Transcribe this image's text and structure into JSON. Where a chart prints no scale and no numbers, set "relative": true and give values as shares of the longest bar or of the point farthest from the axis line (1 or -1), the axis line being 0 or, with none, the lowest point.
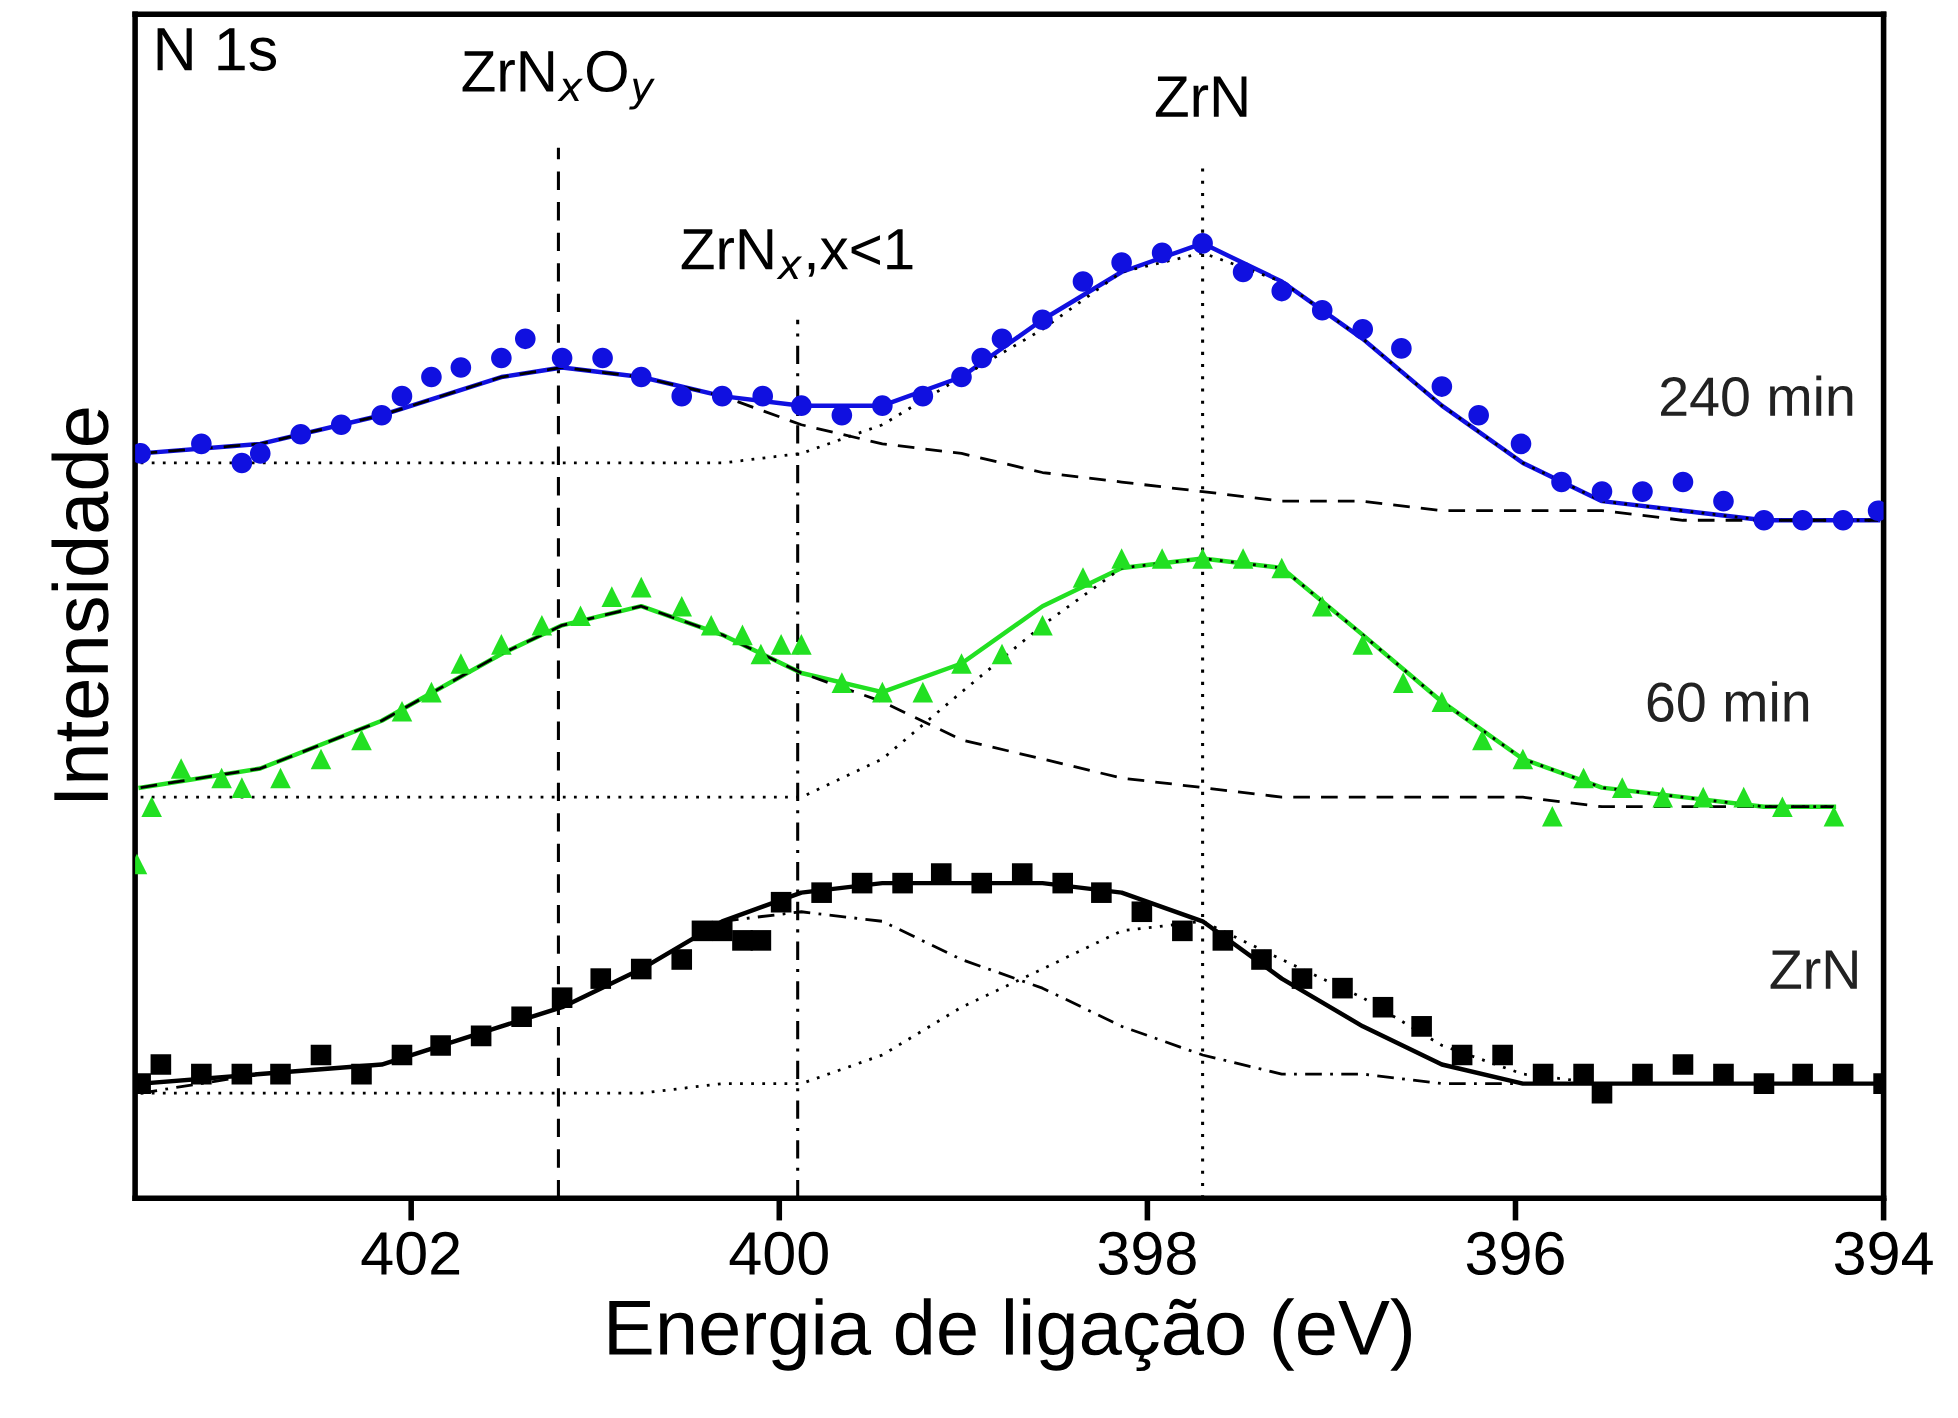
{
  "chart_data": {
    "type": "scatter",
    "relative": true,
    "xlabel": "Energia de ligação (eV)",
    "ylabel": "Intensidade",
    "xlim": [
      403.5,
      394
    ],
    "xticks": [
      402,
      400,
      398,
      396,
      394
    ],
    "tick_labels": "x",
    "grid": false,
    "legend": false,
    "annotations": [
      "N 1s"
    ],
    "ref_lines": [
      {
        "axis": "x",
        "value": 401.2,
        "label": "ZrN$_{x}$O$_{y}$",
        "line_style": "dashed",
        "color": "#000000"
      },
      {
        "axis": "x",
        "value": 399.9,
        "label": "ZrN$_{x}$,x<1",
        "line_style": "dashdot",
        "color": "#000000"
      },
      {
        "axis": "x",
        "value": 397.7,
        "label": "ZrN",
        "line_style": "dotted",
        "color": "#000000"
      }
    ],
    "series": [
      {
        "name": "240 min",
        "marker": "circle",
        "color": "#1010e0",
        "x": [
          403.47,
          403.14,
          402.92,
          402.82,
          402.6,
          402.38,
          402.16,
          402.05,
          401.89,
          401.73,
          401.51,
          401.38,
          401.18,
          400.96,
          400.75,
          400.53,
          400.31,
          400.09,
          399.88,
          399.66,
          399.44,
          399.22,
          399.01,
          398.9,
          398.79,
          398.57,
          398.35,
          398.14,
          397.92,
          397.7,
          397.48,
          397.27,
          397.05,
          396.83,
          396.62,
          396.4,
          396.2,
          395.97,
          395.75,
          395.53,
          395.31,
          395.09,
          394.87,
          394.65,
          394.44,
          394.22,
          394.03
        ],
        "values": [
          0.78,
          0.79,
          0.77,
          0.78,
          0.8,
          0.81,
          0.82,
          0.84,
          0.86,
          0.87,
          0.88,
          0.9,
          0.88,
          0.88,
          0.86,
          0.84,
          0.84,
          0.84,
          0.83,
          0.82,
          0.83,
          0.84,
          0.86,
          0.88,
          0.9,
          0.92,
          0.96,
          0.98,
          0.99,
          1.0,
          0.97,
          0.95,
          0.93,
          0.91,
          0.89,
          0.85,
          0.82,
          0.79,
          0.75,
          0.74,
          0.74,
          0.75,
          0.73,
          0.71,
          0.71,
          0.71,
          0.72
        ]
      },
      {
        "type": "line",
        "line_style": "solid",
        "color": "#1010e0",
        "x": [
          403.47,
          402.82,
          402.16,
          401.51,
          401.18,
          400.75,
          400.31,
          399.88,
          399.44,
          399.01,
          398.57,
          398.14,
          397.7,
          397.27,
          396.83,
          396.4,
          395.96,
          395.53,
          395.09,
          394.65,
          394.03
        ],
        "values": [
          0.78,
          0.79,
          0.82,
          0.86,
          0.87,
          0.86,
          0.84,
          0.83,
          0.83,
          0.86,
          0.92,
          0.97,
          1.0,
          0.96,
          0.9,
          0.83,
          0.77,
          0.73,
          0.72,
          0.71,
          0.71
        ]
      },
      {
        "type": "line",
        "line_style": "dashed",
        "color": "#000000",
        "x": [
          403.47,
          402.82,
          402.16,
          401.51,
          401.18,
          400.75,
          400.31,
          399.88,
          399.44,
          399.01,
          398.57,
          398.14,
          397.7,
          397.27,
          396.83,
          396.4,
          395.96,
          395.53,
          395.09,
          394.65,
          394.03
        ],
        "values": [
          0.78,
          0.79,
          0.82,
          0.86,
          0.87,
          0.86,
          0.84,
          0.81,
          0.79,
          0.78,
          0.76,
          0.75,
          0.74,
          0.73,
          0.73,
          0.72,
          0.72,
          0.72,
          0.71,
          0.71,
          0.71
        ]
      },
      {
        "type": "line",
        "line_style": "dotted",
        "color": "#000000",
        "x": [
          403.47,
          402.82,
          402.16,
          401.51,
          401.18,
          400.75,
          400.31,
          399.88,
          399.44,
          399.01,
          398.57,
          398.14,
          397.7,
          397.27,
          396.83,
          396.4,
          395.96,
          395.53,
          395.09,
          394.65,
          394.03
        ],
        "values": [
          0.77,
          0.77,
          0.77,
          0.77,
          0.77,
          0.77,
          0.77,
          0.78,
          0.81,
          0.86,
          0.91,
          0.97,
          0.99,
          0.96,
          0.9,
          0.83,
          0.77,
          0.73,
          0.72,
          0.71,
          0.71
        ]
      },
      {
        "name": "60 min",
        "marker": "triangle",
        "color": "#22e022",
        "x": [
          403.49,
          403.41,
          403.25,
          403.03,
          402.92,
          402.71,
          402.49,
          402.27,
          402.05,
          401.89,
          401.73,
          401.51,
          401.29,
          401.08,
          400.91,
          400.75,
          400.53,
          400.37,
          400.2,
          400.1,
          399.99,
          399.88,
          399.66,
          399.44,
          399.22,
          399.01,
          398.79,
          398.57,
          398.35,
          398.14,
          397.92,
          397.7,
          397.48,
          397.27,
          397.05,
          396.83,
          396.61,
          396.4,
          396.18,
          395.96,
          395.8,
          395.63,
          395.42,
          395.2,
          394.98,
          394.76,
          394.55,
          394.27
        ],
        "values": [
          0.35,
          0.41,
          0.45,
          0.44,
          0.43,
          0.44,
          0.46,
          0.48,
          0.51,
          0.53,
          0.56,
          0.58,
          0.6,
          0.61,
          0.63,
          0.64,
          0.62,
          0.6,
          0.59,
          0.57,
          0.58,
          0.58,
          0.54,
          0.53,
          0.53,
          0.56,
          0.57,
          0.6,
          0.65,
          0.67,
          0.67,
          0.67,
          0.67,
          0.66,
          0.62,
          0.58,
          0.54,
          0.52,
          0.48,
          0.46,
          0.4,
          0.44,
          0.43,
          0.42,
          0.42,
          0.42,
          0.41,
          0.4
        ]
      },
      {
        "type": "line",
        "line_style": "solid",
        "color": "#22e022",
        "x": [
          403.47,
          402.82,
          402.16,
          401.51,
          401.18,
          400.75,
          400.31,
          399.88,
          399.44,
          399.01,
          398.57,
          398.14,
          397.7,
          397.27,
          396.83,
          396.4,
          395.96,
          395.53,
          395.09,
          394.65,
          394.27
        ],
        "values": [
          0.43,
          0.45,
          0.5,
          0.57,
          0.6,
          0.62,
          0.59,
          0.55,
          0.53,
          0.56,
          0.62,
          0.66,
          0.67,
          0.66,
          0.59,
          0.52,
          0.46,
          0.43,
          0.42,
          0.41,
          0.41
        ]
      },
      {
        "type": "line",
        "line_style": "dashed",
        "color": "#000000",
        "x": [
          403.47,
          402.82,
          402.16,
          401.51,
          401.18,
          400.75,
          400.31,
          399.88,
          399.44,
          399.01,
          398.57,
          398.14,
          397.7,
          397.27,
          396.83,
          396.4,
          395.96,
          395.53,
          395.09,
          394.65,
          394.27
        ],
        "values": [
          0.43,
          0.45,
          0.5,
          0.57,
          0.6,
          0.62,
          0.59,
          0.55,
          0.52,
          0.48,
          0.46,
          0.44,
          0.43,
          0.42,
          0.42,
          0.42,
          0.42,
          0.41,
          0.41,
          0.41,
          0.41
        ]
      },
      {
        "type": "line",
        "line_style": "dotted",
        "color": "#000000",
        "x": [
          403.47,
          402.82,
          402.16,
          401.51,
          401.18,
          400.75,
          400.31,
          399.88,
          399.44,
          399.01,
          398.57,
          398.14,
          397.7,
          397.27,
          396.83,
          396.4,
          395.96,
          395.53,
          395.09,
          394.65,
          394.27
        ],
        "values": [
          0.42,
          0.42,
          0.42,
          0.42,
          0.42,
          0.42,
          0.42,
          0.42,
          0.46,
          0.53,
          0.6,
          0.66,
          0.67,
          0.66,
          0.59,
          0.52,
          0.46,
          0.43,
          0.42,
          0.41,
          0.41
        ]
      },
      {
        "name": "ZrN",
        "marker": "square",
        "color": "#000000",
        "x": [
          403.47,
          403.36,
          403.14,
          402.92,
          402.71,
          402.49,
          402.27,
          402.05,
          401.84,
          401.62,
          401.4,
          401.18,
          400.97,
          400.75,
          400.53,
          400.42,
          400.31,
          400.2,
          400.1,
          399.99,
          399.77,
          399.55,
          399.33,
          399.12,
          398.9,
          398.68,
          398.46,
          398.25,
          398.03,
          397.81,
          397.59,
          397.38,
          397.16,
          396.94,
          396.72,
          396.51,
          396.29,
          396.07,
          395.85,
          395.63,
          395.53,
          395.31,
          395.09,
          394.87,
          394.65,
          394.44,
          394.22,
          394.0
        ],
        "values": [
          0.12,
          0.14,
          0.13,
          0.13,
          0.13,
          0.15,
          0.13,
          0.15,
          0.16,
          0.17,
          0.19,
          0.21,
          0.23,
          0.24,
          0.25,
          0.28,
          0.28,
          0.27,
          0.27,
          0.31,
          0.32,
          0.33,
          0.33,
          0.34,
          0.33,
          0.34,
          0.33,
          0.32,
          0.3,
          0.28,
          0.27,
          0.25,
          0.23,
          0.22,
          0.2,
          0.18,
          0.15,
          0.15,
          0.13,
          0.13,
          0.11,
          0.13,
          0.14,
          0.13,
          0.12,
          0.13,
          0.13,
          0.12
        ]
      },
      {
        "type": "line",
        "line_style": "solid",
        "color": "#000000",
        "x": [
          403.47,
          402.82,
          402.16,
          401.51,
          401.18,
          400.75,
          400.31,
          399.88,
          399.44,
          399.01,
          398.57,
          398.14,
          397.7,
          397.27,
          396.83,
          396.4,
          395.96,
          395.53,
          395.09,
          394.65,
          394.03
        ],
        "values": [
          0.12,
          0.13,
          0.14,
          0.18,
          0.2,
          0.24,
          0.29,
          0.32,
          0.33,
          0.33,
          0.33,
          0.32,
          0.29,
          0.23,
          0.18,
          0.14,
          0.12,
          0.12,
          0.12,
          0.12,
          0.12
        ]
      },
      {
        "type": "line",
        "line_style": "dashdot",
        "color": "#000000",
        "x": [
          403.47,
          402.82,
          402.16,
          401.51,
          401.18,
          400.75,
          400.31,
          399.88,
          399.44,
          399.01,
          398.57,
          398.14,
          397.7,
          397.27,
          396.83,
          396.4,
          395.96,
          395.53,
          395.09,
          394.65,
          394.03
        ],
        "values": [
          0.11,
          0.13,
          0.14,
          0.18,
          0.2,
          0.24,
          0.29,
          0.3,
          0.29,
          0.25,
          0.22,
          0.18,
          0.15,
          0.13,
          0.13,
          0.12,
          0.12,
          0.12,
          0.12,
          0.12,
          0.12
        ]
      },
      {
        "type": "line",
        "line_style": "dotted",
        "color": "#000000",
        "x": [
          403.47,
          402.82,
          402.16,
          401.51,
          401.18,
          400.75,
          400.31,
          399.88,
          399.44,
          399.01,
          398.57,
          398.14,
          397.7,
          397.27,
          396.83,
          396.4,
          395.96,
          395.53
        ],
        "values": [
          0.11,
          0.11,
          0.11,
          0.11,
          0.11,
          0.11,
          0.12,
          0.12,
          0.15,
          0.2,
          0.24,
          0.28,
          0.29,
          0.25,
          0.21,
          0.16,
          0.13,
          0.12
        ]
      }
    ]
  }
}
